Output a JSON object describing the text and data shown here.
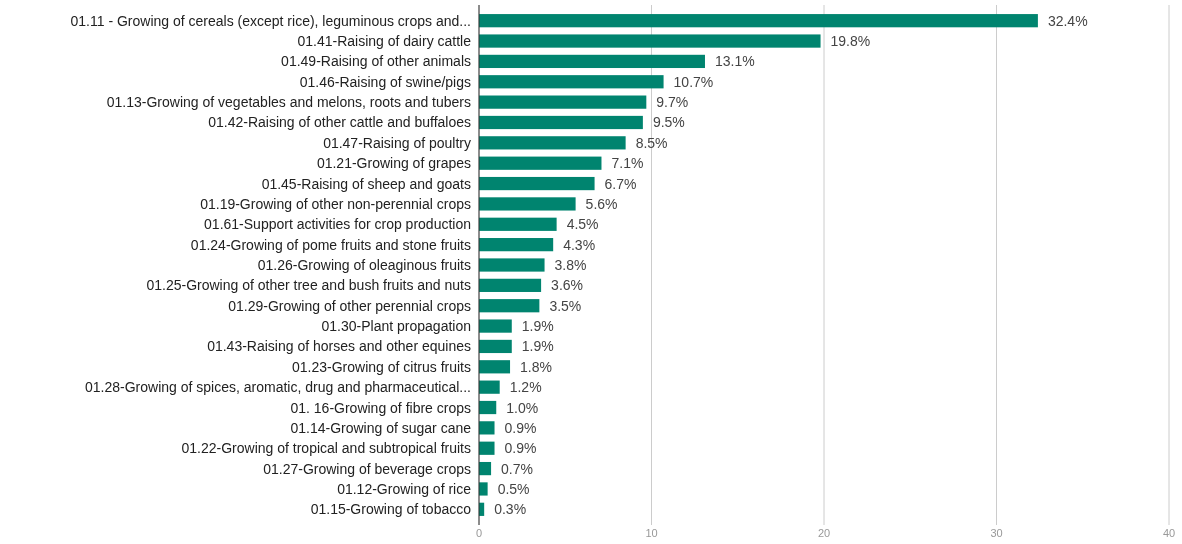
{
  "chart_data": {
    "type": "bar",
    "orientation": "horizontal",
    "categories": [
      "01.11 - Growing of cereals (except rice), leguminous crops and...",
      "01.41-Raising of dairy cattle",
      "01.49-Raising of other animals",
      "01.46-Raising of swine/pigs",
      "01.13-Growing of vegetables and melons, roots and tubers",
      "01.42-Raising of other cattle and buffaloes",
      "01.47-Raising of poultry",
      "01.21-Growing of grapes",
      "01.45-Raising of sheep and goats",
      "01.19-Growing of other non-perennial crops",
      "01.61-Support activities for crop production",
      "01.24-Growing of pome fruits and stone fruits",
      "01.26-Growing of oleaginous fruits",
      "01.25-Growing of other tree and bush fruits and nuts",
      "01.29-Growing of other perennial crops",
      "01.30-Plant propagation",
      "01.43-Raising of horses and other equines",
      "01.23-Growing of citrus fruits",
      "01.28-Growing of spices, aromatic, drug and pharmaceutical...",
      "01. 16-Growing of fibre crops",
      "01.14-Growing of sugar cane",
      "01.22-Growing of tropical and subtropical fruits",
      "01.27-Growing of beverage crops",
      "01.12-Growing of rice",
      "01.15-Growing of tobacco"
    ],
    "values": [
      32.4,
      19.8,
      13.1,
      10.7,
      9.7,
      9.5,
      8.5,
      7.1,
      6.7,
      5.6,
      4.5,
      4.3,
      3.8,
      3.6,
      3.5,
      1.9,
      1.9,
      1.8,
      1.2,
      1.0,
      0.9,
      0.9,
      0.7,
      0.5,
      0.3
    ],
    "value_labels": [
      "32.4%",
      "19.8%",
      "13.1%",
      "10.7%",
      "9.7%",
      "9.5%",
      "8.5%",
      "7.1%",
      "6.7%",
      "5.6%",
      "4.5%",
      "4.3%",
      "3.8%",
      "3.6%",
      "3.5%",
      "1.9%",
      "1.9%",
      "1.8%",
      "1.2%",
      "1.0%",
      "0.9%",
      "0.9%",
      "0.7%",
      "0.5%",
      "0.3%"
    ],
    "color": "#00846f",
    "xlim": [
      0,
      40
    ],
    "xticks": [
      0,
      10,
      20,
      30,
      40
    ],
    "grid": "x"
  }
}
